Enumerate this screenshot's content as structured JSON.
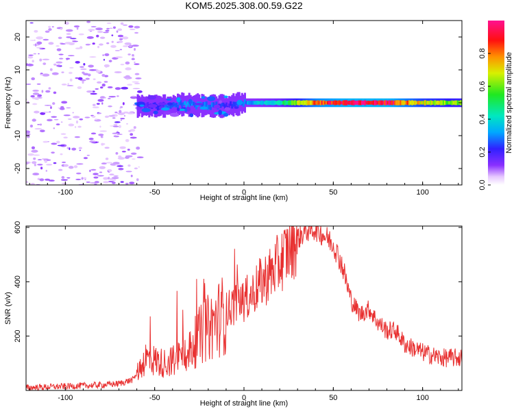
{
  "title": "KOM5.2025.308.00.59.G22",
  "chart_data": [
    {
      "type": "heatmap",
      "xlabel": "Height of straight line (km)",
      "ylabel": "Frequency (Hz)",
      "xlim": [
        -122,
        122
      ],
      "ylim": [
        -25,
        25
      ],
      "xticks": [
        -100,
        -50,
        0,
        50,
        100
      ],
      "yticks": [
        -20,
        -10,
        0,
        10,
        20
      ],
      "colorbar": {
        "label": "Normalized spectral amplitude",
        "range": [
          0,
          1
        ],
        "ticks": [
          0.0,
          0.2,
          0.4,
          0.6,
          0.8
        ]
      },
      "ridge": {
        "description_points": [
          {
            "x": -60,
            "y": -1.0,
            "amp": 0.15
          },
          {
            "x": -45,
            "y": -1.0,
            "amp": 0.25
          },
          {
            "x": -35,
            "y": -0.5,
            "amp": 0.3
          },
          {
            "x": -20,
            "y": -1.0,
            "amp": 0.3
          },
          {
            "x": -10,
            "y": -1.0,
            "amp": 0.2
          },
          {
            "x": 0,
            "y": 0.0,
            "amp": 0.3
          },
          {
            "x": 20,
            "y": 0.0,
            "amp": 0.45
          },
          {
            "x": 40,
            "y": 0.0,
            "amp": 0.85
          },
          {
            "x": 60,
            "y": 0.0,
            "amp": 0.95
          },
          {
            "x": 80,
            "y": 0.0,
            "amp": 0.95
          },
          {
            "x": 100,
            "y": 0.0,
            "amp": 0.7
          },
          {
            "x": 120,
            "y": 0.0,
            "amp": 0.6
          }
        ]
      },
      "noise_region": {
        "x_from": -122,
        "x_to": -60,
        "amp": 0.1
      }
    },
    {
      "type": "line",
      "xlabel": "Height of straight line (km)",
      "ylabel": "SNR (v/v)",
      "xlim": [
        -122,
        122
      ],
      "ylim": [
        0,
        605
      ],
      "xticks": [
        -100,
        -50,
        0,
        50,
        100
      ],
      "yticks": [
        200,
        400,
        600
      ],
      "series": [
        {
          "name": "SNR",
          "color": "#e83030",
          "x": [
            -122,
            -100,
            -80,
            -70,
            -62,
            -55,
            -50,
            -45,
            -40,
            -35,
            -30,
            -25,
            -20,
            -15,
            -10,
            -5,
            0,
            5,
            10,
            15,
            20,
            25,
            30,
            35,
            40,
            45,
            50,
            55,
            60,
            65,
            70,
            75,
            80,
            85,
            90,
            100,
            110,
            122
          ],
          "y": [
            10,
            15,
            20,
            25,
            40,
            120,
            110,
            100,
            110,
            130,
            150,
            200,
            230,
            260,
            290,
            320,
            330,
            360,
            400,
            430,
            470,
            520,
            560,
            590,
            595,
            570,
            540,
            460,
            330,
            280,
            300,
            250,
            220,
            220,
            170,
            140,
            120,
            120
          ]
        }
      ]
    }
  ]
}
